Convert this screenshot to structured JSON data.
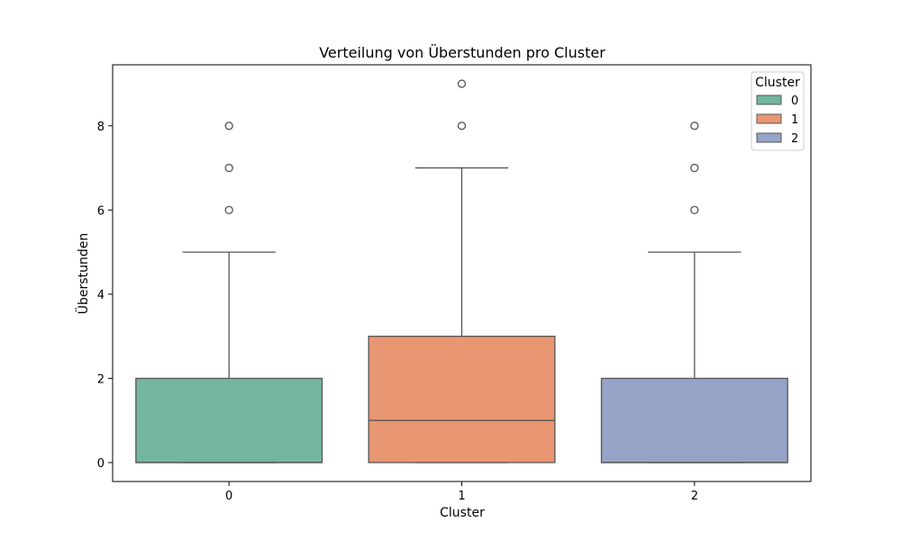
{
  "chart_data": {
    "type": "boxplot",
    "title": "Verteilung von Überstunden pro Cluster",
    "xlabel": "Cluster",
    "ylabel": "Überstunden",
    "categories": [
      "0",
      "1",
      "2"
    ],
    "ylim": [
      -0.45,
      9.45
    ],
    "yticks": [
      0,
      2,
      4,
      6,
      8
    ],
    "grid": false,
    "legend": {
      "title": "Cluster",
      "position": "top-right",
      "entries": [
        "0",
        "1",
        "2"
      ]
    },
    "series": [
      {
        "name": "0",
        "color": "#73b59f",
        "q1": 0,
        "median": 0,
        "q3": 2,
        "whisker_low": 0,
        "whisker_high": 5,
        "outliers": [
          6,
          7,
          8
        ]
      },
      {
        "name": "1",
        "color": "#e99673",
        "q1": 0,
        "median": 1,
        "q3": 3,
        "whisker_low": 0,
        "whisker_high": 7,
        "outliers": [
          8,
          9
        ]
      },
      {
        "name": "2",
        "color": "#95a4c6",
        "q1": 0,
        "median": 0,
        "q3": 2,
        "whisker_low": 0,
        "whisker_high": 5,
        "outliers": [
          6,
          7,
          8
        ]
      }
    ]
  }
}
